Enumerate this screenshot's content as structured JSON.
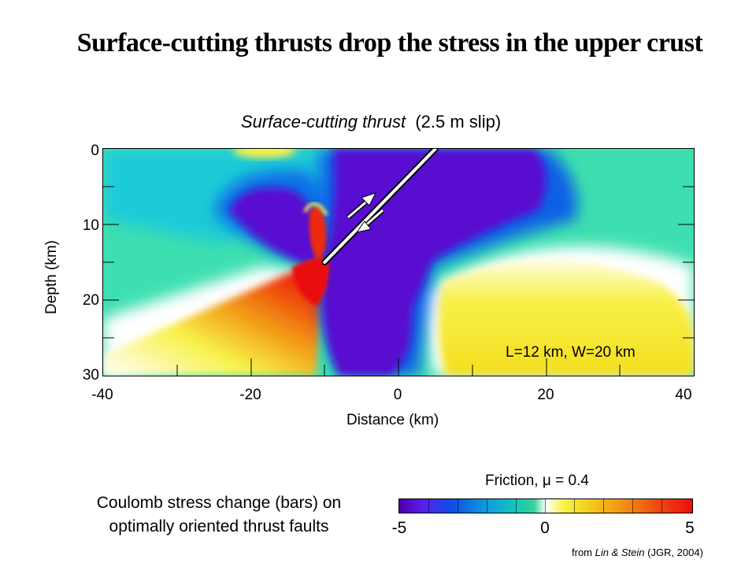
{
  "slide": {
    "title": "Surface-cutting thrusts drop the stress in the upper crust",
    "credit_prefix": "from ",
    "credit_authors": "Lin & Stein",
    "credit_suffix": " (JGR, 2004)"
  },
  "plot": {
    "title_italic": "Surface-cutting thrust",
    "title_rest": "(2.5 m slip)",
    "xlabel": "Distance  (km)",
    "ylabel": "Depth (km)",
    "xticks": [
      "-40",
      "-20",
      "0",
      "20",
      "40"
    ],
    "yticks": [
      "0",
      "10",
      "20",
      "30"
    ],
    "annotation": "L=12 km, W=20 km",
    "fault": {
      "surface_x_km": 5,
      "surface_depth_km": 0,
      "bottom_x_km": -10,
      "bottom_depth_km": 15
    },
    "xlim": [
      -40,
      40
    ],
    "ylim": [
      0,
      30
    ]
  },
  "colorbar": {
    "title": "Friction, μ = 0.4",
    "min_label": "-5",
    "mid_label": "0",
    "max_label": "5",
    "range": [
      -5,
      5
    ],
    "colors": [
      "#4b00a8",
      "#0f4ee6",
      "#13c7b8",
      "#ffffff",
      "#f7f24a",
      "#f29412",
      "#ea0f0f"
    ]
  },
  "legend": {
    "line1": "Coulomb stress change (bars) on",
    "line2": "optimally oriented thrust faults"
  }
}
